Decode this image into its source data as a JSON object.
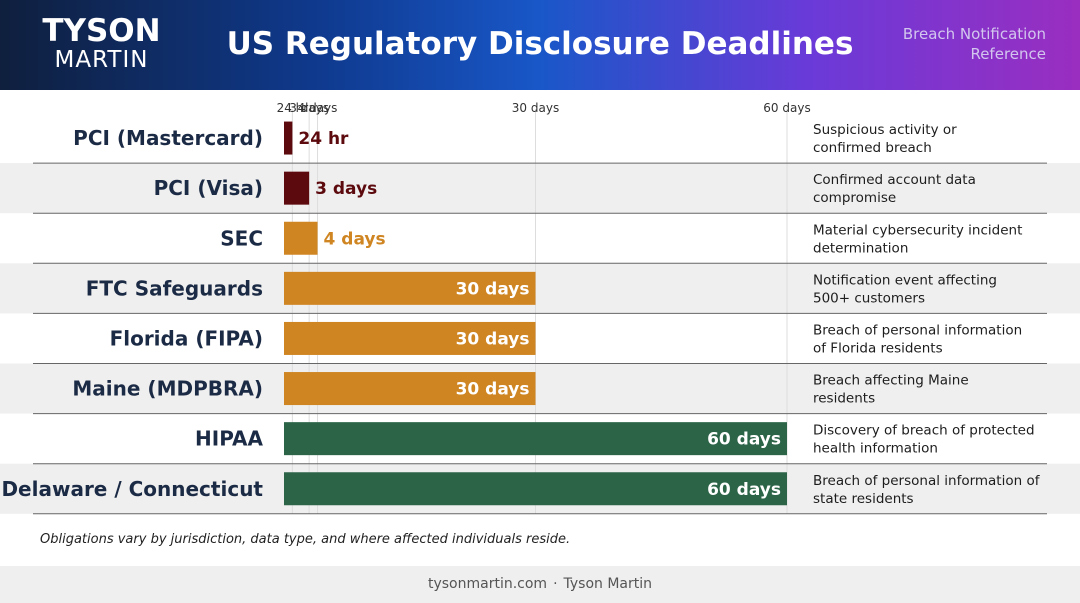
{
  "header": {
    "logo_line1": "TYSON",
    "logo_line2": "MARTIN",
    "title": "US Regulatory Disclosure Deadlines",
    "subtitle_line1": "Breach Notification",
    "subtitle_line2": "Reference"
  },
  "chart_data": {
    "type": "bar",
    "orientation": "horizontal",
    "x_unit": "days",
    "xlim": [
      0,
      60
    ],
    "x_ticks": [
      {
        "value": 1,
        "label": "24 hr"
      },
      {
        "value": 3,
        "label": "3 days"
      },
      {
        "value": 4,
        "label": "4 days"
      },
      {
        "value": 30,
        "label": "30 days"
      },
      {
        "value": 60,
        "label": "60 days"
      }
    ],
    "grid": true,
    "rows": [
      {
        "category": "PCI (Mastercard)",
        "value": 1,
        "value_label": "24 hr",
        "color": "#5c0a0e",
        "description": [
          "Suspicious activity or",
          "confirmed breach"
        ]
      },
      {
        "category": "PCI (Visa)",
        "value": 3,
        "value_label": "3 days",
        "color": "#5c0a0e",
        "description": [
          "Confirmed account data",
          "compromise"
        ]
      },
      {
        "category": "SEC",
        "value": 4,
        "value_label": "4 days",
        "color": "#cf8521",
        "description": [
          "Material cybersecurity incident",
          "determination"
        ]
      },
      {
        "category": "FTC Safeguards",
        "value": 30,
        "value_label": "30 days",
        "color": "#cf8521",
        "description": [
          "Notification event affecting",
          "500+ customers"
        ]
      },
      {
        "category": "Florida (FIPA)",
        "value": 30,
        "value_label": "30 days",
        "color": "#cf8521",
        "description": [
          "Breach of personal information",
          "of Florida residents"
        ]
      },
      {
        "category": "Maine (MDPBRA)",
        "value": 30,
        "value_label": "30 days",
        "color": "#cf8521",
        "description": [
          "Breach affecting Maine",
          "residents"
        ]
      },
      {
        "category": "HIPAA",
        "value": 60,
        "value_label": "60 days",
        "color": "#2c6448",
        "description": [
          "Discovery of breach of protected",
          "health information"
        ]
      },
      {
        "category": "Delaware / Connecticut",
        "value": 60,
        "value_label": "60 days",
        "color": "#2c6448",
        "description": [
          "Breach of personal information of",
          "state residents"
        ]
      }
    ]
  },
  "footnote": "Obligations vary by jurisdiction, data type, and where affected individuals reside.",
  "footer": {
    "site": "tysonmartin.com",
    "separator": "·",
    "name": "Tyson Martin"
  }
}
